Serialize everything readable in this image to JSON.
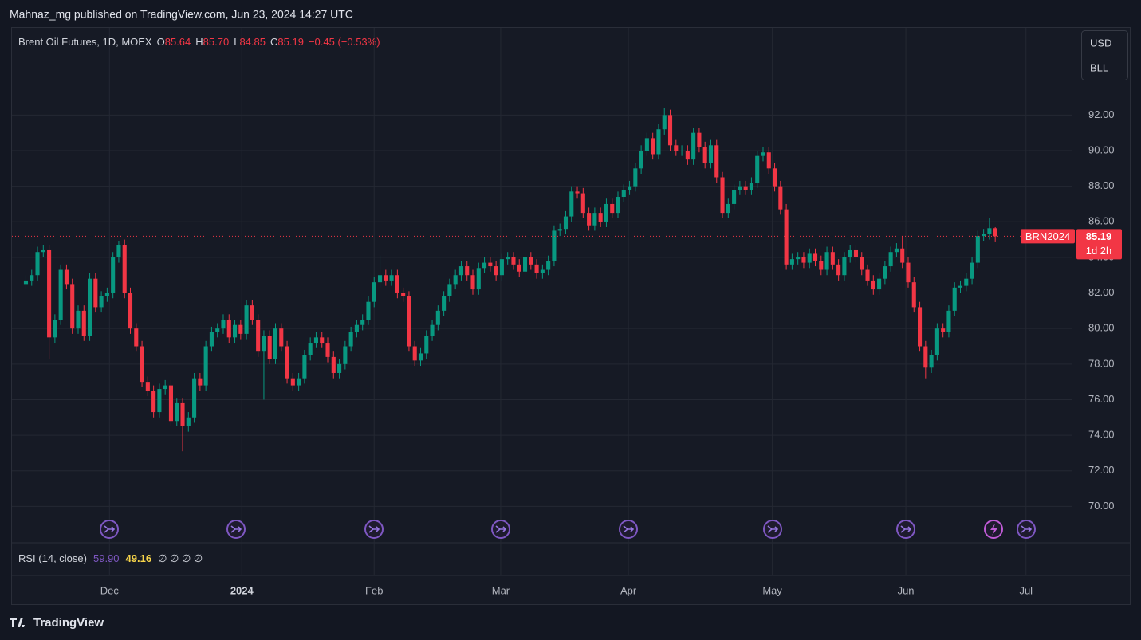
{
  "header": {
    "byline": "Mahnaz_mg published on TradingView.com, Jun 23, 2024 14:27 UTC"
  },
  "buttons": [
    "USD",
    "BLL"
  ],
  "footer": {
    "brand": "TradingView"
  },
  "chart_data": {
    "type": "candlestick",
    "title": "Brent Oil Futures, 1D, MOEX",
    "ohlc_letters": [
      "O",
      "H",
      "L",
      "C"
    ],
    "last_labels": {
      "open": "85.64",
      "high": "85.70",
      "low": "84.85",
      "close": "85.19"
    },
    "change_label": "−0.45 (−0.53%)",
    "symbol": "BRN2024",
    "countdown": "1d 2h",
    "up_color": "#089981",
    "down_color": "#f23645",
    "grid": true,
    "xlim": [
      -2.4,
      180.3
    ],
    "xticks": [
      {
        "value": 14.4,
        "label": "Dec"
      },
      {
        "value": 37.2,
        "label": "2024"
      },
      {
        "value": 60.0,
        "label": "Feb"
      },
      {
        "value": 81.8,
        "label": "Mar"
      },
      {
        "value": 103.8,
        "label": "Apr"
      },
      {
        "value": 128.6,
        "label": "May"
      },
      {
        "value": 151.6,
        "label": "Jun"
      },
      {
        "value": 172.3,
        "label": "Jul"
      }
    ],
    "ylim": [
      68,
      96.9
    ],
    "yticks": [
      {
        "value": 70,
        "label": "70.00"
      },
      {
        "value": 72,
        "label": "72.00"
      },
      {
        "value": 74,
        "label": "74.00"
      },
      {
        "value": 76,
        "label": "76.00"
      },
      {
        "value": 78,
        "label": "78.00"
      },
      {
        "value": 80,
        "label": "80.00"
      },
      {
        "value": 82,
        "label": "82.00"
      },
      {
        "value": 84,
        "label": "84.00"
      },
      {
        "value": 86,
        "label": "86.00"
      },
      {
        "value": 88,
        "label": "88.00"
      },
      {
        "value": 90,
        "label": "90.00"
      },
      {
        "value": 92,
        "label": "92.00"
      }
    ],
    "open": [
      82.5,
      82.7,
      83.0,
      84.3,
      84.4,
      79.5,
      80.5,
      83.3,
      82.5,
      80.0,
      81.0,
      79.6,
      82.8,
      81.2,
      81.8,
      82.0,
      84.0,
      84.7,
      82.0,
      80.0,
      79.0,
      77.0,
      76.5,
      75.3,
      76.6,
      76.8,
      74.8,
      75.8,
      74.5,
      75.0,
      77.2,
      76.8,
      79.0,
      79.8,
      80.0,
      80.5,
      79.5,
      80.2,
      79.7,
      81.3,
      80.5,
      78.7,
      79.6,
      78.3,
      80.0,
      79.0,
      77.2,
      76.8,
      77.2,
      78.5,
      79.2,
      79.5,
      79.2,
      78.4,
      77.5,
      78.0,
      79.0,
      79.8,
      80.2,
      80.5,
      81.5,
      82.6,
      83.0,
      82.7,
      83.0,
      82.0,
      81.8,
      79.0,
      78.2,
      78.6,
      79.6,
      80.2,
      81.0,
      81.8,
      82.5,
      83.0,
      83.5,
      83.0,
      82.2,
      83.4,
      83.7,
      83.5,
      83.0,
      83.9,
      84.0,
      83.6,
      83.2,
      84.0,
      83.6,
      83.1,
      83.3,
      83.8,
      85.5,
      85.6,
      86.3,
      87.7,
      87.6,
      86.5,
      85.8,
      86.5,
      86.0,
      87.0,
      86.5,
      87.4,
      87.8,
      88.0,
      89.0,
      90.0,
      90.7,
      89.8,
      91.2,
      92.0,
      90.3,
      90.0,
      90.0,
      89.5,
      91.0,
      90.2,
      89.3,
      90.3,
      88.5,
      86.5,
      87.0,
      87.8,
      88.0,
      87.8,
      88.2,
      89.7,
      89.9,
      89.0,
      88.0,
      86.7,
      83.6,
      83.9,
      84.0,
      83.7,
      84.2,
      83.8,
      83.3,
      84.3,
      83.6,
      83.0,
      84.0,
      84.4,
      84.0,
      83.3,
      82.7,
      82.2,
      82.8,
      83.5,
      84.3,
      84.5,
      83.7,
      82.6,
      81.2,
      79.0,
      77.8,
      78.5,
      80.0,
      79.8,
      81.0,
      82.3,
      82.4,
      82.8,
      83.7,
      85.2,
      85.3,
      85.64
    ],
    "high": [
      83.0,
      83.3,
      84.6,
      84.7,
      84.7,
      80.8,
      83.6,
      83.6,
      82.8,
      81.3,
      81.3,
      83.1,
      83.1,
      82.1,
      82.3,
      84.3,
      84.9,
      85.0,
      82.3,
      80.3,
      79.3,
      77.3,
      76.8,
      76.9,
      77.1,
      77.1,
      76.1,
      76.1,
      75.3,
      77.5,
      77.5,
      79.3,
      80.1,
      80.3,
      80.8,
      80.8,
      80.5,
      80.5,
      81.6,
      81.6,
      80.8,
      79.9,
      79.9,
      80.3,
      80.3,
      79.3,
      77.5,
      77.5,
      78.8,
      79.5,
      79.8,
      79.8,
      79.5,
      78.7,
      78.3,
      79.3,
      80.1,
      80.5,
      80.8,
      81.8,
      82.9,
      84.1,
      83.3,
      83.3,
      83.3,
      82.3,
      82.1,
      79.3,
      78.9,
      79.9,
      80.5,
      81.3,
      82.1,
      82.8,
      83.3,
      83.8,
      83.8,
      83.3,
      83.7,
      84.0,
      84.0,
      83.8,
      84.2,
      84.3,
      84.3,
      83.9,
      84.3,
      84.3,
      83.9,
      83.6,
      84.1,
      85.8,
      85.9,
      86.6,
      88.0,
      88.0,
      87.9,
      86.8,
      86.8,
      86.8,
      87.3,
      87.3,
      87.7,
      88.1,
      88.3,
      89.3,
      90.3,
      91.0,
      91.0,
      91.5,
      92.4,
      92.3,
      90.6,
      90.3,
      90.3,
      91.3,
      91.3,
      90.5,
      90.6,
      90.6,
      88.8,
      87.3,
      88.1,
      88.3,
      88.3,
      88.5,
      90.0,
      90.2,
      90.2,
      89.3,
      88.3,
      87.0,
      84.2,
      84.3,
      84.3,
      84.5,
      84.5,
      84.1,
      84.6,
      84.6,
      83.9,
      84.3,
      84.7,
      84.7,
      84.3,
      83.6,
      83.0,
      83.1,
      83.8,
      84.6,
      84.8,
      85.2,
      84.0,
      82.9,
      81.5,
      79.3,
      78.8,
      80.3,
      80.3,
      81.3,
      82.6,
      82.7,
      83.1,
      84.0,
      85.5,
      85.6,
      86.2,
      85.7
    ],
    "low": [
      82.2,
      82.4,
      82.7,
      84.0,
      78.3,
      79.2,
      80.2,
      82.2,
      79.7,
      79.7,
      79.3,
      79.3,
      80.9,
      80.9,
      81.5,
      81.7,
      83.7,
      81.7,
      79.7,
      78.7,
      76.7,
      76.2,
      75.0,
      75.0,
      76.3,
      74.5,
      74.5,
      73.1,
      74.2,
      74.7,
      76.5,
      76.5,
      78.7,
      79.5,
      79.7,
      79.2,
      79.2,
      79.4,
      79.4,
      80.2,
      78.4,
      76.0,
      78.0,
      78.0,
      78.7,
      76.9,
      76.5,
      76.5,
      76.9,
      78.2,
      78.9,
      78.9,
      78.1,
      77.2,
      77.2,
      77.7,
      78.7,
      79.5,
      79.9,
      80.2,
      81.2,
      82.3,
      82.4,
      82.4,
      81.7,
      81.5,
      78.7,
      77.9,
      77.9,
      78.3,
      79.3,
      79.9,
      80.7,
      81.5,
      82.2,
      82.7,
      82.7,
      81.9,
      81.9,
      83.1,
      83.2,
      82.7,
      82.7,
      83.6,
      83.3,
      82.9,
      82.9,
      83.3,
      82.8,
      82.8,
      83.0,
      83.5,
      85.2,
      85.3,
      86.0,
      87.3,
      86.2,
      85.5,
      85.5,
      85.7,
      85.7,
      86.2,
      86.2,
      87.1,
      87.5,
      87.7,
      88.7,
      89.7,
      89.5,
      89.5,
      90.9,
      90.0,
      89.7,
      89.7,
      89.2,
      89.2,
      89.9,
      89.0,
      89.0,
      88.2,
      86.2,
      86.2,
      86.7,
      87.5,
      87.5,
      87.5,
      87.9,
      89.4,
      88.7,
      87.7,
      86.4,
      83.3,
      83.3,
      83.6,
      83.4,
      83.4,
      83.5,
      83.0,
      83.0,
      83.3,
      82.7,
      82.7,
      83.7,
      83.7,
      83.0,
      82.4,
      81.9,
      81.9,
      82.5,
      83.2,
      84.0,
      83.4,
      82.3,
      80.9,
      78.7,
      77.2,
      77.5,
      78.2,
      79.5,
      79.5,
      80.7,
      82.0,
      82.1,
      82.5,
      83.4,
      84.9,
      85.0,
      84.85
    ],
    "close": [
      82.7,
      83.0,
      84.3,
      84.4,
      79.5,
      80.5,
      83.3,
      82.5,
      80.0,
      81.0,
      79.6,
      82.8,
      81.2,
      81.8,
      82.0,
      84.0,
      84.7,
      82.0,
      80.0,
      79.0,
      77.0,
      76.5,
      75.3,
      76.6,
      76.8,
      74.8,
      75.8,
      74.5,
      75.0,
      77.2,
      76.8,
      79.0,
      79.8,
      80.0,
      80.5,
      79.5,
      80.2,
      79.7,
      81.3,
      80.5,
      78.7,
      79.6,
      78.3,
      80.0,
      79.0,
      77.2,
      76.8,
      77.2,
      78.5,
      79.2,
      79.5,
      79.2,
      78.4,
      77.5,
      78.0,
      79.0,
      79.8,
      80.2,
      80.5,
      81.5,
      82.6,
      83.0,
      82.7,
      83.0,
      82.0,
      81.8,
      79.0,
      78.2,
      78.6,
      79.6,
      80.2,
      81.0,
      81.8,
      82.5,
      83.0,
      83.5,
      83.0,
      82.2,
      83.4,
      83.7,
      83.5,
      83.0,
      83.9,
      84.0,
      83.6,
      83.2,
      84.0,
      83.6,
      83.1,
      83.3,
      83.8,
      85.5,
      85.6,
      86.3,
      87.7,
      87.6,
      86.5,
      85.8,
      86.5,
      86.0,
      87.0,
      86.5,
      87.4,
      87.8,
      88.0,
      89.0,
      90.0,
      90.7,
      89.8,
      91.2,
      92.0,
      90.3,
      90.0,
      90.0,
      89.5,
      91.0,
      90.2,
      89.3,
      90.3,
      88.5,
      86.5,
      87.0,
      87.8,
      88.0,
      87.8,
      88.2,
      89.7,
      89.9,
      89.0,
      88.0,
      86.7,
      83.6,
      83.9,
      84.0,
      83.7,
      84.2,
      83.8,
      83.3,
      84.3,
      83.6,
      83.0,
      84.0,
      84.4,
      84.0,
      83.3,
      82.7,
      82.2,
      82.8,
      83.5,
      84.3,
      84.5,
      83.7,
      82.6,
      81.2,
      79.0,
      77.8,
      78.5,
      80.0,
      79.8,
      81.0,
      82.3,
      82.4,
      82.8,
      83.7,
      85.2,
      85.3,
      85.64,
      85.19
    ],
    "rsi": {
      "title": "RSI (14, close)",
      "values": [
        59.9,
        49.16
      ],
      "value_labels": [
        "59.90",
        "49.16"
      ],
      "colors": [
        "#7e57c2",
        "#f7d44a"
      ],
      "placeholders": "∅  ∅  ∅  ∅"
    }
  }
}
